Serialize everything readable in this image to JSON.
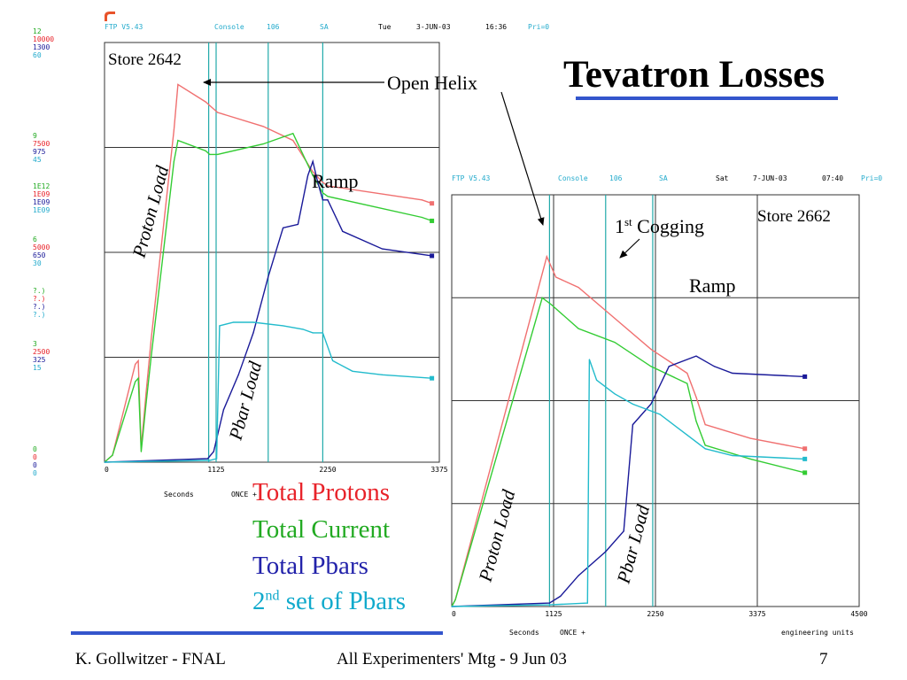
{
  "slide": {
    "title": "Tevatron Losses",
    "legend": [
      {
        "label": "Total Protons",
        "color": "#e8232a"
      },
      {
        "label": "Total Current",
        "color": "#22aa22"
      },
      {
        "label": "Total Pbars",
        "color": "#2222aa"
      },
      {
        "label_prefix": "2",
        "label_sup": "nd",
        "label_suffix": " set of Pbars",
        "color": "#11aacc"
      }
    ],
    "footer": {
      "left": "K. Gollwitzer - FNAL",
      "center": "All Experimenters' Mtg - 9 Jun 03",
      "page": "7"
    }
  },
  "panel1_header": {
    "prog": "FTP V5.43",
    "console": "Console",
    "num": "106",
    "sa": "SA",
    "day": "Tue",
    "date": "3-JUN-03",
    "time": "16:36",
    "pri": "Pri=0"
  },
  "panel1_scale": [
    {
      "values": [
        "12",
        "10000",
        "1300",
        "60"
      ]
    },
    {
      "values": [
        "9",
        "7500",
        "975",
        "45"
      ]
    },
    {
      "values": [
        "1E12",
        "1E09",
        "1E09",
        "1E09"
      ]
    },
    {
      "values": [
        "6",
        "5000",
        "650",
        "30"
      ]
    },
    {
      "values": [
        "?.)",
        "?.)",
        "?.)",
        "?.)"
      ]
    },
    {
      "values": [
        "3",
        "2500",
        "325",
        "15"
      ]
    },
    {
      "values": [
        "0",
        "0",
        "0",
        "0"
      ]
    }
  ],
  "panel2_header": {
    "prog": "FTP V5.43",
    "console": "Console",
    "num": "106",
    "sa": "SA",
    "day": "Sat",
    "date": "7-JUN-03",
    "time": "07:40",
    "pri": "Pri=0"
  },
  "annotations": {
    "store1": "Store 2642",
    "store2": "Store 2662",
    "open_helix": "Open Helix",
    "ramp": "Ramp",
    "cogging_pre": "1",
    "cogging_sup": "st",
    "cogging_post": " Cogging",
    "proton_load": "Proton Load",
    "pbar_load": "Pbar Load"
  },
  "colors": {
    "protons": "#f07070",
    "current": "#33cc33",
    "pbars": "#1a1a99",
    "pbars2": "#22bbcc",
    "marker_line": "#22aaaa",
    "scale_green": "#22aa22",
    "scale_red": "#e8232a",
    "scale_blue": "#1a1a99",
    "scale_cyan": "#22aacc"
  },
  "chart_data": [
    {
      "type": "line",
      "title": "Store 2642",
      "xlabel": "Seconds",
      "xlabel_extra": "ONCE +",
      "x_ticks": [
        "0",
        "1125",
        "2250",
        "3375"
      ],
      "xlim": [
        0,
        3375
      ],
      "ylim": [
        0,
        12
      ],
      "grid": true,
      "series": [
        {
          "name": "Total Protons",
          "key": "protons",
          "x": [
            0,
            80,
            310,
            340,
            370,
            420,
            470,
            700,
            740,
            1020,
            1060,
            1140,
            1600,
            1900,
            2100,
            2200,
            2250,
            3200,
            3300
          ],
          "y": [
            0,
            0.2,
            2.8,
            2.9,
            0.4,
            2.0,
            3.5,
            9.5,
            10.8,
            10.3,
            10.2,
            10.0,
            9.6,
            9.2,
            8.3,
            8.0,
            7.9,
            7.5,
            7.4
          ]
        },
        {
          "name": "Total Current",
          "key": "current",
          "x": [
            0,
            80,
            310,
            340,
            370,
            420,
            470,
            700,
            740,
            1020,
            1060,
            1140,
            1600,
            1900,
            2100,
            2200,
            2250,
            3200,
            3300
          ],
          "y": [
            0,
            0.2,
            2.3,
            2.4,
            0.3,
            1.7,
            3.0,
            8.6,
            9.2,
            8.9,
            8.8,
            8.8,
            9.1,
            9.4,
            8.2,
            7.7,
            7.6,
            7.0,
            6.9
          ]
        },
        {
          "name": "Total Pbars",
          "key": "pbars",
          "x": [
            0,
            1040,
            1100,
            1200,
            1350,
            1500,
            1650,
            1800,
            1950,
            2050,
            2100,
            2150,
            2200,
            2250,
            2400,
            2800,
            3300
          ],
          "y": [
            0,
            0.1,
            0.3,
            1.5,
            2.5,
            3.7,
            5.3,
            6.7,
            6.8,
            8.2,
            8.6,
            8.0,
            7.5,
            7.5,
            6.6,
            6.1,
            5.9
          ]
        },
        {
          "name": "2nd set of Pbars",
          "key": "pbars2",
          "x": [
            0,
            1060,
            1130,
            1160,
            1300,
            1500,
            1800,
            2000,
            2100,
            2200,
            2300,
            2500,
            2800,
            3300
          ],
          "y": [
            0,
            0.05,
            0.1,
            3.9,
            4.0,
            4.0,
            3.9,
            3.8,
            3.7,
            3.7,
            2.9,
            2.6,
            2.5,
            2.4
          ]
        }
      ]
    },
    {
      "type": "line",
      "title": "Store 2662",
      "xlabel": "Seconds",
      "xlabel_extra": "ONCE +",
      "xlabel_right": "engineering units",
      "x_ticks": [
        "0",
        "1125",
        "2250",
        "3375",
        "4500"
      ],
      "xlim": [
        0,
        4500
      ],
      "ylim": [
        0,
        12
      ],
      "grid": true,
      "series": [
        {
          "name": "Total Protons",
          "key": "protons",
          "x": [
            0,
            40,
            1050,
            1150,
            1400,
            1800,
            2200,
            2600,
            2700,
            2800,
            3300,
            3900
          ],
          "y": [
            0,
            0.2,
            10.2,
            9.6,
            9.3,
            8.4,
            7.5,
            6.8,
            6.1,
            5.3,
            4.9,
            4.6
          ]
        },
        {
          "name": "Total Current",
          "key": "current",
          "x": [
            0,
            40,
            1000,
            1100,
            1400,
            1800,
            2200,
            2600,
            2700,
            2800,
            3300,
            3900
          ],
          "y": [
            0,
            0.2,
            9.0,
            8.8,
            8.1,
            7.7,
            7.0,
            6.5,
            5.4,
            4.7,
            4.3,
            3.9
          ]
        },
        {
          "name": "Total Pbars",
          "key": "pbars",
          "x": [
            0,
            1080,
            1200,
            1400,
            1700,
            1900,
            2000,
            2200,
            2400,
            2700,
            2900,
            3100,
            3900
          ],
          "y": [
            0,
            0.1,
            0.3,
            0.9,
            1.6,
            2.2,
            5.3,
            5.9,
            7.0,
            7.3,
            7.0,
            6.8,
            6.7
          ]
        },
        {
          "name": "2nd set of Pbars",
          "key": "pbars2",
          "x": [
            0,
            1080,
            1500,
            1520,
            1600,
            1800,
            2000,
            2300,
            2600,
            2800,
            3100,
            3900
          ],
          "y": [
            0,
            0.05,
            0.1,
            7.2,
            6.6,
            6.2,
            5.9,
            5.6,
            5.0,
            4.6,
            4.4,
            4.3
          ]
        }
      ]
    }
  ]
}
